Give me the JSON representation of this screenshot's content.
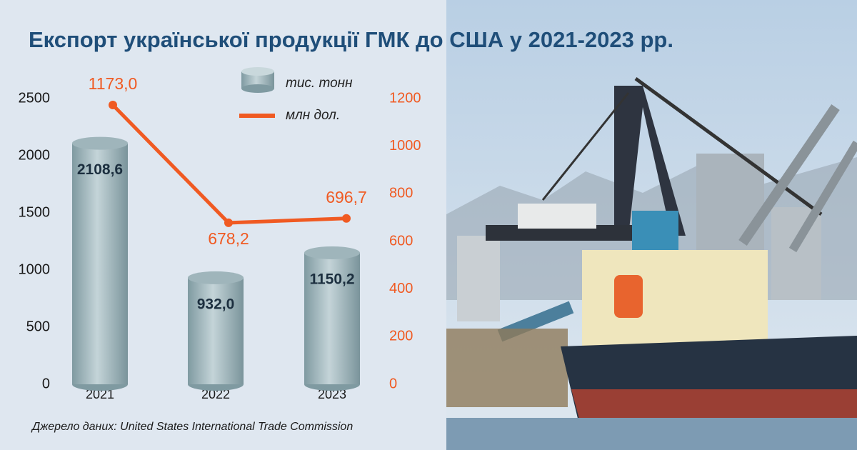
{
  "chart_data": {
    "type": "bar",
    "title": "Експорт української продукції ГМК до США  у 2021-2023 рр.",
    "source": "Джерело даних: United States International Trade Commission",
    "categories": [
      "2021",
      "2022",
      "2023"
    ],
    "series": [
      {
        "name": "тис. тонн",
        "type": "bar",
        "color": "#9fb5bb",
        "values": [
          2108.6,
          932.0,
          1150.2
        ],
        "value_labels": [
          "2108,6",
          "932,0",
          "1150,2"
        ]
      },
      {
        "name": "млн дол.",
        "type": "line",
        "axis": "y2",
        "color": "#f05a22",
        "values": [
          1173.0,
          678.2,
          696.7
        ],
        "value_labels": [
          "1173,0",
          "678,2",
          "696,7"
        ]
      }
    ],
    "ylim": [
      0,
      2500
    ],
    "yticks": [
      0,
      500,
      1000,
      1500,
      2000,
      2500
    ],
    "y2lim": [
      0,
      1200
    ],
    "y2ticks": [
      0,
      200,
      400,
      600,
      800,
      1000,
      1200
    ],
    "grid": false
  }
}
